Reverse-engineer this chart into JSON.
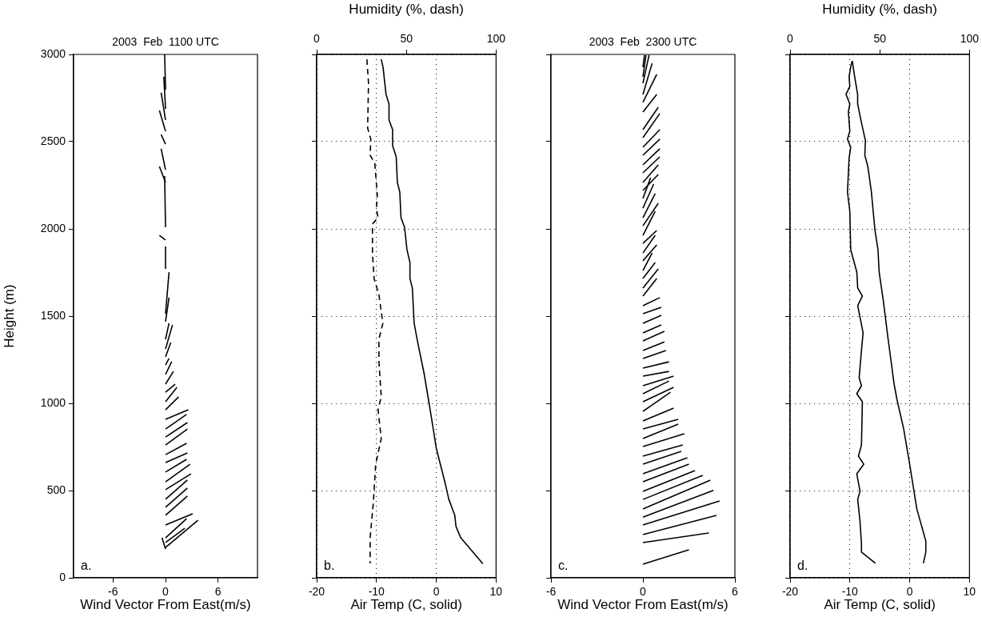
{
  "chart_data": [
    {
      "type": "line",
      "title": "2003  Feb  1100 UTC",
      "xlabel": "Wind Vector From East(m/s)",
      "ylabel": "Height (m)",
      "xlim": [
        -10.5,
        10.5
      ],
      "xticks": [
        -6,
        0,
        6
      ],
      "ylim": [
        0,
        3000
      ],
      "yticks": [
        0,
        500,
        1000,
        1500,
        2000,
        2500,
        3000
      ],
      "marker": "none",
      "line_style": "solid",
      "annotations": [
        "a."
      ],
      "series": [
        {
          "color": "#000000",
          "x": [
            0,
            3.7
          ],
          "values": [
            174,
            330
          ]
        },
        {
          "color": "#000000",
          "x": [
            0,
            2.2
          ],
          "values": [
            202,
            284
          ]
        },
        {
          "color": "#000000",
          "x": [
            0,
            2.4
          ],
          "values": [
            229,
            339
          ]
        },
        {
          "color": "#000000",
          "x": [
            0,
            -0.4
          ],
          "values": [
            165,
            229
          ]
        },
        {
          "color": "#000000",
          "x": [
            0,
            3.1
          ],
          "values": [
            303,
            367
          ]
        },
        {
          "color": "#000000",
          "x": [
            0,
            2.5
          ],
          "values": [
            358,
            468
          ]
        },
        {
          "color": "#000000",
          "x": [
            0,
            2.5
          ],
          "values": [
            404,
            514
          ]
        },
        {
          "color": "#000000",
          "x": [
            0,
            2.5
          ],
          "values": [
            450,
            560
          ]
        },
        {
          "color": "#000000",
          "x": [
            0,
            2.9
          ],
          "values": [
            505,
            596
          ]
        },
        {
          "color": "#000000",
          "x": [
            0,
            2.8
          ],
          "values": [
            550,
            651
          ]
        },
        {
          "color": "#000000",
          "x": [
            0,
            2.4
          ],
          "values": [
            606,
            679
          ]
        },
        {
          "color": "#000000",
          "x": [
            0,
            2.5
          ],
          "values": [
            661,
            716
          ]
        },
        {
          "color": "#000000",
          "x": [
            0,
            2.4
          ],
          "values": [
            706,
            771
          ]
        },
        {
          "color": "#000000",
          "x": [
            0,
            2.5
          ],
          "values": [
            761,
            853
          ]
        },
        {
          "color": "#000000",
          "x": [
            0,
            2.5
          ],
          "values": [
            807,
            890
          ]
        },
        {
          "color": "#000000",
          "x": [
            0,
            2.4
          ],
          "values": [
            853,
            936
          ]
        },
        {
          "color": "#000000",
          "x": [
            0,
            2.6
          ],
          "values": [
            908,
            963
          ]
        },
        {
          "color": "#000000",
          "x": [
            0,
            1.5
          ],
          "values": [
            963,
            1037
          ]
        },
        {
          "color": "#000000",
          "x": [
            0,
            1.3
          ],
          "values": [
            1009,
            1092
          ]
        },
        {
          "color": "#000000",
          "x": [
            0,
            1.1
          ],
          "values": [
            1064,
            1110
          ]
        },
        {
          "color": "#000000",
          "x": [
            0,
            0.9
          ],
          "values": [
            1110,
            1183
          ]
        },
        {
          "color": "#000000",
          "x": [
            0,
            0.7
          ],
          "values": [
            1165,
            1239
          ]
        },
        {
          "color": "#000000",
          "x": [
            0,
            0.4
          ],
          "values": [
            1220,
            1257
          ]
        },
        {
          "color": "#000000",
          "x": [
            0,
            0.6
          ],
          "values": [
            1266,
            1349
          ]
        },
        {
          "color": "#000000",
          "x": [
            0,
            0.8
          ],
          "values": [
            1312,
            1450
          ]
        },
        {
          "color": "#000000",
          "x": [
            0,
            0.4
          ],
          "values": [
            1367,
            1459
          ]
        },
        {
          "color": "#000000",
          "x": [
            0,
            0.4
          ],
          "values": [
            1468,
            1606
          ]
        },
        {
          "color": "#000000",
          "x": [
            0,
            0.4
          ],
          "values": [
            1514,
            1752
          ]
        },
        {
          "color": "#000000",
          "x": [
            0,
            0
          ],
          "values": [
            1771,
            1899
          ]
        },
        {
          "color": "#000000",
          "x": [
            0,
            -0.7
          ],
          "values": [
            1936,
            1963
          ]
        },
        {
          "color": "#000000",
          "x": [
            0,
            -0.1
          ],
          "values": [
            2009,
            2303
          ]
        },
        {
          "color": "#000000",
          "x": [
            0,
            -0.7
          ],
          "values": [
            2266,
            2358
          ]
        },
        {
          "color": "#000000",
          "x": [
            0,
            -0.5
          ],
          "values": [
            2339,
            2459
          ]
        },
        {
          "color": "#000000",
          "x": [
            0,
            -0.5
          ],
          "values": [
            2486,
            2541
          ]
        },
        {
          "color": "#000000",
          "x": [
            0,
            -0.7
          ],
          "values": [
            2560,
            2679
          ]
        },
        {
          "color": "#000000",
          "x": [
            0,
            -0.5
          ],
          "values": [
            2624,
            2780
          ]
        },
        {
          "color": "#000000",
          "x": [
            0,
            -0.2
          ],
          "values": [
            2688,
            2872
          ]
        },
        {
          "color": "#000000",
          "x": [
            0,
            -0.1
          ],
          "values": [
            2798,
            3000
          ]
        }
      ]
    },
    {
      "type": "line",
      "xlabel": "Air Temp (C, solid)",
      "x2label": "Humidity (%, dash)",
      "xlim": [
        -20,
        10
      ],
      "xticks": [
        -20,
        -10,
        0,
        10
      ],
      "x2lim": [
        0,
        100
      ],
      "x2ticks": [
        0,
        50,
        100
      ],
      "ylim": [
        0,
        3000
      ],
      "yticks": [
        0,
        500,
        1000,
        1500,
        2000,
        2500,
        3000
      ],
      "tick_labels": "x",
      "grid": true,
      "marker": "none",
      "annotations": [
        "b."
      ],
      "series": [
        {
          "color": "#000000",
          "line_style": "solid",
          "x": [
            -9.2,
            -8.9,
            -8.4,
            -7.9,
            -7.9,
            -7.3,
            -7.3,
            -6.7,
            -6.5,
            -6.1,
            -5.9,
            -5.3,
            -4.9,
            -4.4,
            -4.4,
            -4.0,
            -3.7,
            -3.1,
            -2.0,
            -1.2,
            -0.5,
            0.0,
            1.5,
            2.1,
            3.1,
            3.3,
            4.1,
            7.8
          ],
          "values": [
            2972,
            2927,
            2771,
            2716,
            2624,
            2569,
            2477,
            2413,
            2266,
            2211,
            2064,
            2009,
            1881,
            1807,
            1716,
            1661,
            1459,
            1349,
            1165,
            1000,
            853,
            743,
            541,
            450,
            358,
            294,
            229,
            80
          ]
        },
        {
          "color": "#000000",
          "line_style": "dashed",
          "axis": "x2",
          "x": [
            28,
            28.9,
            28.4,
            30.2,
            29.8,
            32.4,
            33.8,
            33.3,
            34.2,
            31.1,
            31.1,
            32,
            34.7,
            36.9,
            34.7,
            34.7,
            36,
            34.2,
            36,
            32.9,
            31.6,
            29.8,
            29.8
          ],
          "values": [
            2972,
            2835,
            2578,
            2514,
            2422,
            2376,
            2193,
            2119,
            2064,
            2028,
            1862,
            1716,
            1624,
            1459,
            1367,
            1239,
            1037,
            963,
            798,
            651,
            431,
            229,
            83
          ]
        }
      ]
    },
    {
      "type": "line",
      "title": "2003  Feb  2300 UTC",
      "xlabel": "Wind Vector From East(m/s)",
      "xlim": [
        -6,
        6
      ],
      "xticks": [
        -6,
        0,
        6
      ],
      "ylim": [
        0,
        3000
      ],
      "yticks": [
        0,
        500,
        1000,
        1500,
        2000,
        2500,
        3000
      ],
      "tick_labels": "x",
      "marker": "none",
      "line_style": "solid",
      "annotations": [
        "c."
      ],
      "series": [
        {
          "color": "#000000",
          "x": [
            0,
            3.0
          ],
          "values": [
            78,
            161
          ]
        },
        {
          "color": "#000000",
          "x": [
            0,
            4.3
          ],
          "values": [
            202,
            257
          ]
        },
        {
          "color": "#000000",
          "x": [
            0,
            4.8
          ],
          "values": [
            248,
            358
          ]
        },
        {
          "color": "#000000",
          "x": [
            0,
            5.0
          ],
          "values": [
            303,
            440
          ]
        },
        {
          "color": "#000000",
          "x": [
            0,
            4.6
          ],
          "values": [
            348,
            501
          ]
        },
        {
          "color": "#000000",
          "x": [
            0,
            4.4
          ],
          "values": [
            394,
            560
          ]
        },
        {
          "color": "#000000",
          "x": [
            0,
            3.9
          ],
          "values": [
            449,
            587
          ]
        },
        {
          "color": "#000000",
          "x": [
            0,
            3.4
          ],
          "values": [
            495,
            615
          ]
        },
        {
          "color": "#000000",
          "x": [
            0,
            3.0
          ],
          "values": [
            550,
            651
          ]
        },
        {
          "color": "#000000",
          "x": [
            0,
            2.9
          ],
          "values": [
            596,
            688
          ]
        },
        {
          "color": "#000000",
          "x": [
            0,
            2.5
          ],
          "values": [
            651,
            725
          ]
        },
        {
          "color": "#000000",
          "x": [
            0,
            2.6
          ],
          "values": [
            697,
            761
          ]
        },
        {
          "color": "#000000",
          "x": [
            0,
            2.7
          ],
          "values": [
            752,
            826
          ]
        },
        {
          "color": "#000000",
          "x": [
            0,
            2.3
          ],
          "values": [
            798,
            881
          ]
        },
        {
          "color": "#000000",
          "x": [
            0,
            2.3
          ],
          "values": [
            853,
            908
          ]
        },
        {
          "color": "#000000",
          "x": [
            0,
            2.0
          ],
          "values": [
            899,
            972
          ]
        },
        {
          "color": "#000000",
          "x": [
            0,
            1.8
          ],
          "values": [
            954,
            1064
          ]
        },
        {
          "color": "#000000",
          "x": [
            0,
            2.0
          ],
          "values": [
            1009,
            1092
          ]
        },
        {
          "color": "#000000",
          "x": [
            0,
            1.7
          ],
          "values": [
            1055,
            1128
          ]
        },
        {
          "color": "#000000",
          "x": [
            0,
            2.0
          ],
          "values": [
            1101,
            1156
          ]
        },
        {
          "color": "#000000",
          "x": [
            0,
            1.7
          ],
          "values": [
            1156,
            1183
          ]
        },
        {
          "color": "#000000",
          "x": [
            0,
            1.7
          ],
          "values": [
            1202,
            1238
          ]
        },
        {
          "color": "#000000",
          "x": [
            0,
            1.5
          ],
          "values": [
            1257,
            1303
          ]
        },
        {
          "color": "#000000",
          "x": [
            0,
            1.4
          ],
          "values": [
            1303,
            1352
          ]
        },
        {
          "color": "#000000",
          "x": [
            0,
            1.4
          ],
          "values": [
            1358,
            1413
          ]
        },
        {
          "color": "#000000",
          "x": [
            0,
            1.2
          ],
          "values": [
            1404,
            1450
          ]
        },
        {
          "color": "#000000",
          "x": [
            0,
            1.2
          ],
          "values": [
            1459,
            1505
          ]
        },
        {
          "color": "#000000",
          "x": [
            0,
            1.2
          ],
          "values": [
            1514,
            1550
          ]
        },
        {
          "color": "#000000",
          "x": [
            0,
            1.1
          ],
          "values": [
            1560,
            1606
          ]
        },
        {
          "color": "#000000",
          "x": [
            0,
            0.9
          ],
          "values": [
            1615,
            1716
          ]
        },
        {
          "color": "#000000",
          "x": [
            0,
            1.0
          ],
          "values": [
            1660,
            1771
          ]
        },
        {
          "color": "#000000",
          "x": [
            0,
            0.8
          ],
          "values": [
            1716,
            1807
          ]
        },
        {
          "color": "#000000",
          "x": [
            0,
            0.6
          ],
          "values": [
            1761,
            1862
          ]
        },
        {
          "color": "#000000",
          "x": [
            0,
            0.9
          ],
          "values": [
            1817,
            1908
          ]
        },
        {
          "color": "#000000",
          "x": [
            0,
            0.8
          ],
          "values": [
            1862,
            1963
          ]
        },
        {
          "color": "#000000",
          "x": [
            0,
            0.9
          ],
          "values": [
            1917,
            1991
          ]
        },
        {
          "color": "#000000",
          "x": [
            0,
            0.8
          ],
          "values": [
            1963,
            2101
          ]
        },
        {
          "color": "#000000",
          "x": [
            0,
            1.0
          ],
          "values": [
            2018,
            2147
          ]
        },
        {
          "color": "#000000",
          "x": [
            0,
            0.8
          ],
          "values": [
            2064,
            2202
          ]
        },
        {
          "color": "#000000",
          "x": [
            0,
            0.7
          ],
          "values": [
            2119,
            2257
          ]
        },
        {
          "color": "#000000",
          "x": [
            0,
            0.5
          ],
          "values": [
            2174,
            2293
          ]
        },
        {
          "color": "#000000",
          "x": [
            0,
            1.0
          ],
          "values": [
            2220,
            2312
          ]
        },
        {
          "color": "#000000",
          "x": [
            0,
            1.0
          ],
          "values": [
            2266,
            2367
          ]
        },
        {
          "color": "#000000",
          "x": [
            0,
            1.1
          ],
          "values": [
            2321,
            2413
          ]
        },
        {
          "color": "#000000",
          "x": [
            0,
            1.1
          ],
          "values": [
            2367,
            2459
          ]
        },
        {
          "color": "#000000",
          "x": [
            0,
            1.1
          ],
          "values": [
            2422,
            2514
          ]
        },
        {
          "color": "#000000",
          "x": [
            0,
            1.1
          ],
          "values": [
            2468,
            2569
          ]
        },
        {
          "color": "#000000",
          "x": [
            0,
            1.1
          ],
          "values": [
            2523,
            2661
          ]
        },
        {
          "color": "#000000",
          "x": [
            0,
            1.0
          ],
          "values": [
            2569,
            2697
          ]
        },
        {
          "color": "#000000",
          "x": [
            0,
            0.9
          ],
          "values": [
            2670,
            2771
          ]
        },
        {
          "color": "#000000",
          "x": [
            0,
            0.9
          ],
          "values": [
            2725,
            2886
          ]
        },
        {
          "color": "#000000",
          "x": [
            0,
            0.6
          ],
          "values": [
            2771,
            2949
          ]
        },
        {
          "color": "#000000",
          "x": [
            0,
            0.4
          ],
          "values": [
            2835,
            2996
          ]
        },
        {
          "color": "#000000",
          "x": [
            0,
            0.2
          ],
          "values": [
            2872,
            2996
          ]
        },
        {
          "color": "#000000",
          "x": [
            0,
            0.1
          ],
          "values": [
            2927,
            2996
          ]
        }
      ]
    },
    {
      "type": "line",
      "xlabel": "Air Temp (C, solid)",
      "x2label": "Humidity (%, dash)",
      "xlim": [
        -20,
        10
      ],
      "xticks": [
        -20,
        -10,
        0,
        10
      ],
      "x2lim": [
        0,
        100
      ],
      "x2ticks": [
        0,
        50,
        100
      ],
      "ylim": [
        0,
        3000
      ],
      "yticks": [
        0,
        500,
        1000,
        1500,
        2000,
        2500,
        3000
      ],
      "tick_labels": "x",
      "grid": true,
      "marker": "none",
      "line_style": "solid",
      "annotations": [
        "d."
      ],
      "series": [
        {
          "color": "#000000",
          "x": [
            -9.6,
            -9.2,
            -8.7,
            -8.7,
            -8.1,
            -7.4,
            -7.5,
            -7.0,
            -6.4,
            -5.8,
            -5.3,
            -5.1,
            -4.4,
            -3.6,
            -2.6,
            -2.1,
            -1.0,
            0.0,
            1.2,
            2.7,
            2.7,
            2.3
          ],
          "values": [
            2963,
            2872,
            2771,
            2716,
            2615,
            2505,
            2422,
            2358,
            2211,
            1991,
            1881,
            1752,
            1587,
            1367,
            1110,
            1018,
            853,
            651,
            394,
            211,
            147,
            83
          ]
        },
        {
          "color": "#000000",
          "axis": "x2",
          "x": [
            34.6,
            33.8,
            32.9,
            33.3,
            31.2,
            33.3,
            32.5,
            33.3,
            32,
            33.8,
            32.9,
            32,
            33.3,
            33.8,
            37.2,
            37.7,
            40.3,
            37.7,
            40.7,
            39.8,
            38.5,
            39.8,
            37.2,
            40.3,
            39.8,
            38.1,
            41.1,
            37.2,
            39,
            37.7,
            39,
            39.8,
            39.8,
            47.6
          ],
          "values": [
            2963,
            2927,
            2872,
            2817,
            2771,
            2716,
            2670,
            2560,
            2514,
            2468,
            2404,
            2211,
            2101,
            1881,
            1752,
            1661,
            1615,
            1560,
            1404,
            1303,
            1147,
            1101,
            1055,
            1009,
            761,
            697,
            651,
            596,
            495,
            450,
            321,
            193,
            147,
            83
          ]
        }
      ]
    }
  ]
}
